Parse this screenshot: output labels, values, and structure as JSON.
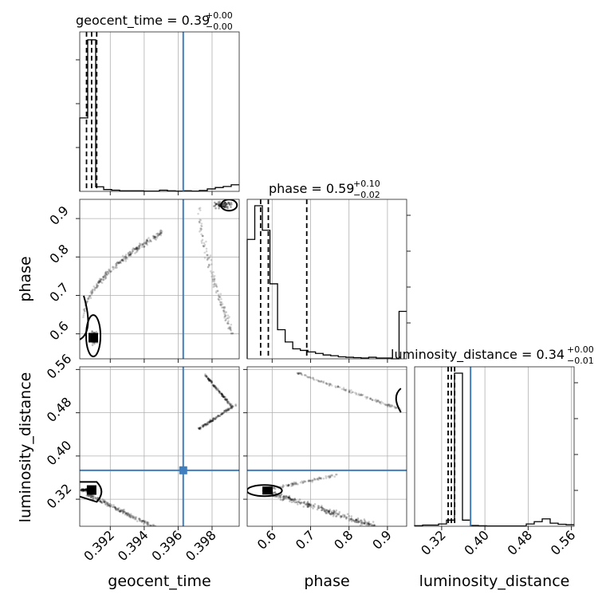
{
  "chart_data": {
    "type": "corner",
    "parameters": [
      "geocent_time",
      "phase",
      "luminosity_distance"
    ],
    "truth": {
      "geocent_time": 0.3963,
      "phase": null,
      "luminosity_distance": 0.3735
    },
    "titles": [
      {
        "param": "geocent_time",
        "text": "geocent_time = 0.39",
        "plus": "+0.00",
        "minus": "−0.00"
      },
      {
        "param": "phase",
        "text": "phase = 0.59",
        "plus": "+0.10",
        "minus": "−0.02"
      },
      {
        "param": "luminosity_distance",
        "text": "luminosity_distance = 0.34",
        "plus": "+0.00",
        "minus": "−0.01"
      }
    ],
    "axes": {
      "geocent_time": {
        "range": [
          0.3902,
          0.3996
        ],
        "ticks": [
          "0.392",
          "0.394",
          "0.396",
          "0.398"
        ],
        "tick_values": [
          0.392,
          0.394,
          0.396,
          0.398
        ]
      },
      "phase": {
        "range": [
          0.535,
          0.95
        ],
        "ticks": [
          "0.6",
          "0.7",
          "0.8",
          "0.9"
        ],
        "tick_values": [
          0.6,
          0.7,
          0.8,
          0.9
        ]
      },
      "luminosity_distance": {
        "range": [
          0.27,
          0.565
        ],
        "ticks": [
          "0.32",
          "0.40",
          "0.48",
          "0.56"
        ],
        "tick_values": [
          0.32,
          0.4,
          0.48,
          0.56
        ]
      }
    },
    "xlabels": [
      "geocent_time",
      "phase",
      "luminosity_distance"
    ],
    "ylabels": [
      "phase",
      "luminosity_distance"
    ],
    "quantiles": {
      "geocent_time": [
        0.3906,
        0.3909,
        0.3912
      ],
      "phase": [
        0.57,
        0.59,
        0.69
      ],
      "luminosity_distance": [
        0.332,
        0.338,
        0.344
      ]
    },
    "hist": {
      "geocent_time": [
        0.48,
        0.99,
        0.03,
        0.012,
        0.008,
        0.004,
        0.004,
        0.004,
        0.002,
        0.002,
        0.008,
        0.004,
        0.002,
        0.004,
        0.002,
        0.006,
        0.016,
        0.025,
        0.032,
        0.043
      ],
      "phase": [
        0.78,
        1.0,
        0.84,
        0.49,
        0.19,
        0.11,
        0.065,
        0.055,
        0.045,
        0.035,
        0.025,
        0.02,
        0.013,
        0.01,
        0.008,
        0.005,
        0.01,
        0.005,
        0.005,
        0.0,
        0.31
      ],
      "luminosity_distance": [
        0.004,
        0.008,
        0.008,
        0.015,
        0.04,
        1.0,
        0.04,
        0.005,
        0.003,
        0.002,
        0.002,
        0.002,
        0.002,
        0.002,
        0.015,
        0.03,
        0.048,
        0.02,
        0.013,
        0.01
      ]
    },
    "grid": true
  }
}
